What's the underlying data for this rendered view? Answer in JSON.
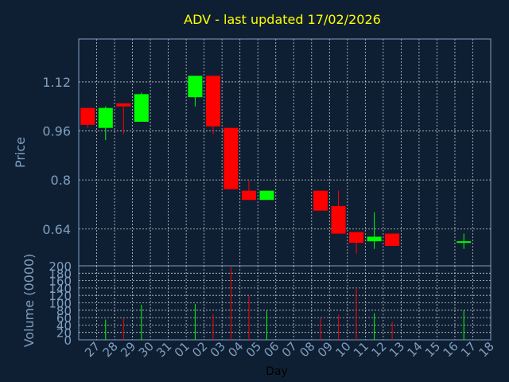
{
  "chart_data": {
    "type": "candlestick",
    "title": "ADV - last updated 17/02/2026",
    "xlabel": "Day",
    "ylabel_price": "Price",
    "ylabel_volume": "Volume (0000)",
    "grid": true,
    "price_ylim": [
      0.52,
      1.26
    ],
    "price_ticks": [
      0.64,
      0.8,
      0.96,
      1.12
    ],
    "price_tick_labels": [
      "0.64",
      "0.8",
      "0.96",
      "1.12"
    ],
    "volume_ylim": [
      0,
      200
    ],
    "volume_ticks": [
      0,
      20,
      40,
      60,
      80,
      100,
      120,
      140,
      160,
      180,
      200
    ],
    "volume_tick_labels": [
      "0",
      "20",
      "40",
      "60",
      "80",
      "100",
      "120",
      "140",
      "160",
      "180",
      "200"
    ],
    "x_tick_labels": [
      "27",
      "28",
      "29",
      "30",
      "31",
      "01",
      "02",
      "03",
      "04",
      "05",
      "06",
      "07",
      "08",
      "09",
      "10",
      "11",
      "12",
      "13",
      "14",
      "15",
      "16",
      "17",
      "18"
    ],
    "candles": [
      {
        "day": "27",
        "open": 1.035,
        "high": 1.035,
        "low": 0.97,
        "close": 0.98,
        "volume": 0
      },
      {
        "day": "28",
        "open": 0.97,
        "high": 1.04,
        "low": 0.93,
        "close": 1.035,
        "volume": 55
      },
      {
        "day": "29",
        "open": 1.05,
        "high": 1.05,
        "low": 0.95,
        "close": 1.04,
        "volume": 58
      },
      {
        "day": "30",
        "open": 0.99,
        "high": 1.085,
        "low": 0.99,
        "close": 1.08,
        "volume": 95
      },
      {
        "day": "02",
        "open": 1.07,
        "high": 1.14,
        "low": 1.04,
        "close": 1.14,
        "volume": 97
      },
      {
        "day": "03",
        "open": 1.14,
        "high": 1.14,
        "low": 0.95,
        "close": 0.975,
        "volume": 70
      },
      {
        "day": "04",
        "open": 0.97,
        "high": 0.97,
        "low": 0.77,
        "close": 0.77,
        "volume": 197
      },
      {
        "day": "05",
        "open": 0.765,
        "high": 0.8,
        "low": 0.735,
        "close": 0.735,
        "volume": 118
      },
      {
        "day": "06",
        "open": 0.735,
        "high": 0.765,
        "low": 0.735,
        "close": 0.765,
        "volume": 78
      },
      {
        "day": "09",
        "open": 0.765,
        "high": 0.765,
        "low": 0.7,
        "close": 0.7,
        "volume": 58
      },
      {
        "day": "10",
        "open": 0.715,
        "high": 0.765,
        "low": 0.625,
        "close": 0.625,
        "volume": 68
      },
      {
        "day": "11",
        "open": 0.63,
        "high": 0.63,
        "low": 0.56,
        "close": 0.595,
        "volume": 140
      },
      {
        "day": "12",
        "open": 0.6,
        "high": 0.695,
        "low": 0.575,
        "close": 0.615,
        "volume": 72
      },
      {
        "day": "13",
        "open": 0.625,
        "high": 0.625,
        "low": 0.585,
        "close": 0.585,
        "volume": 48
      },
      {
        "day": "17",
        "open": 0.595,
        "high": 0.625,
        "low": 0.575,
        "close": 0.6,
        "volume": 80
      }
    ],
    "colors": {
      "background": "#0f1f33",
      "up": "#00ff00",
      "down": "#ff0000",
      "text": "#7f9fbf",
      "title": "#ffff00",
      "grid": "#ffffff",
      "axis": "#7f9fbf"
    }
  }
}
